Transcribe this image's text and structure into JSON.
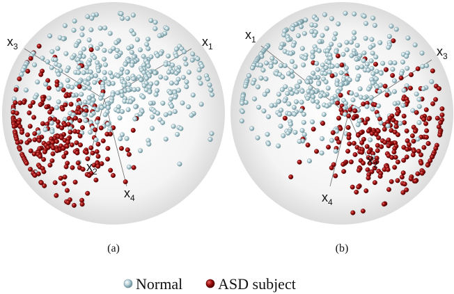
{
  "chart_data": [
    {
      "type": "scatter",
      "panel_label": "(a)",
      "axes": [
        {
          "name": "x",
          "sub": "1"
        },
        {
          "name": "x",
          "sub": "2"
        },
        {
          "name": "x",
          "sub": "3"
        },
        {
          "name": "x",
          "sub": "4"
        }
      ],
      "series": [
        {
          "name": "Normal",
          "color": "#a9c9d1",
          "center": [
            0.05,
            -0.28
          ],
          "spread": [
            0.42,
            0.28
          ],
          "count": 420,
          "seed": 11
        },
        {
          "name": "ASD subject",
          "color": "#a10e0e",
          "center": [
            -0.55,
            0.2
          ],
          "spread": [
            0.3,
            0.28
          ],
          "count": 260,
          "seed": 23
        }
      ]
    },
    {
      "type": "scatter",
      "panel_label": "(b)",
      "axes": [
        {
          "name": "x",
          "sub": "1"
        },
        {
          "name": "x",
          "sub": "2"
        },
        {
          "name": "x",
          "sub": "3"
        },
        {
          "name": "x",
          "sub": "4"
        }
      ],
      "series": [
        {
          "name": "Normal",
          "color": "#a9c9d1",
          "center": [
            -0.2,
            -0.3
          ],
          "spread": [
            0.42,
            0.3
          ],
          "count": 420,
          "seed": 37
        },
        {
          "name": "ASD subject",
          "color": "#a10e0e",
          "center": [
            0.42,
            0.2
          ],
          "spread": [
            0.35,
            0.3
          ],
          "count": 260,
          "seed": 53
        }
      ]
    }
  ],
  "legend": {
    "items": [
      {
        "label": "Normal",
        "color": "#a9c9d1"
      },
      {
        "label": "ASD subject",
        "color": "#a10e0e"
      }
    ]
  }
}
